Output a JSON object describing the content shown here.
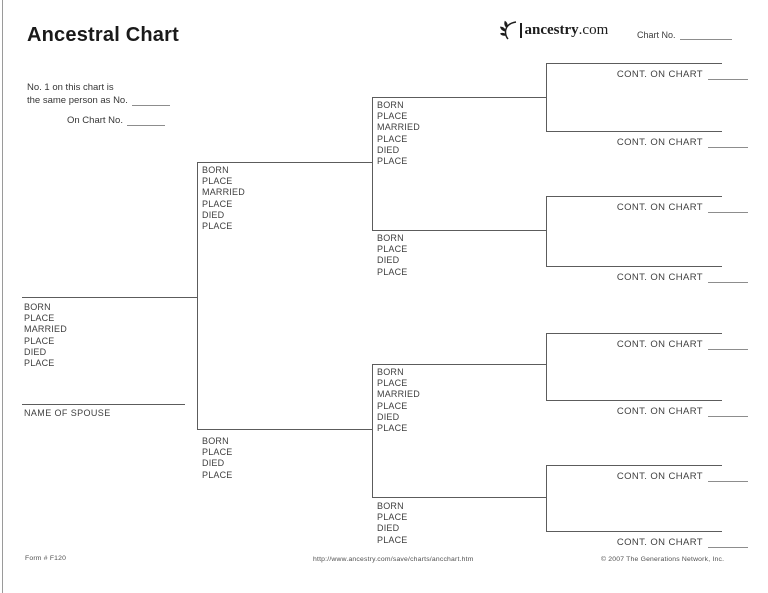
{
  "page": {
    "title": "Ancestral Chart",
    "logo": {
      "brand": "ancestry",
      "tld": ".com"
    },
    "chart_no_label": "Chart No.",
    "instructions": {
      "line1": "No. 1 on this chart is",
      "line2": "the same person as No.",
      "line3": "On Chart No."
    },
    "fields": {
      "full": [
        "BORN",
        "PLACE",
        "MARRIED",
        "PLACE",
        "DIED",
        "PLACE"
      ],
      "short": [
        "BORN",
        "PLACE",
        "DIED",
        "PLACE"
      ]
    },
    "spouse_label": "NAME OF SPOUSE",
    "cont_label": "CONT. ON CHART",
    "footer": {
      "form": "Form # F120",
      "url": "http://www.ancestry.com/save/charts/ancchart.htm",
      "copyright": "© 2007 The Generations Network, Inc."
    },
    "colors": {
      "line": "#5c5c5c",
      "blank_line": "#8d8d8d",
      "text": "#3f3f3f"
    }
  }
}
